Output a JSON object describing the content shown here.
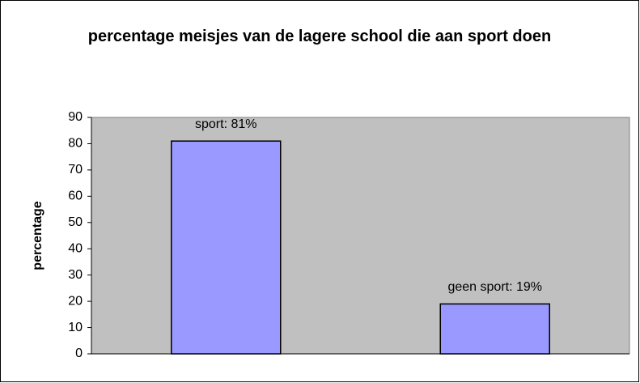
{
  "chart_data": {
    "type": "bar",
    "title": "percentage meisjes van de lagere school die aan sport doen",
    "y_label": "percentage",
    "categories": [
      null,
      null
    ],
    "values": [
      81,
      19
    ],
    "value_labels": [
      "sport: 81%",
      "geen sport: 19%"
    ],
    "color": "#9999ff",
    "ylim": [
      0,
      90
    ],
    "yticks": [
      0,
      10,
      20,
      30,
      40,
      50,
      60,
      70,
      80,
      90
    ],
    "grid": false
  }
}
